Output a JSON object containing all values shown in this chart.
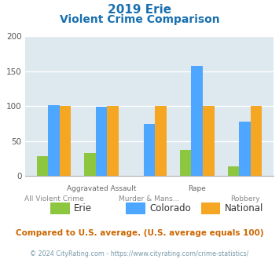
{
  "title_line1": "2019 Erie",
  "title_line2": "Violent Crime Comparison",
  "categories": [
    "All Violent Crime",
    "Aggravated Assault",
    "Murder & Mans...",
    "Rape",
    "Robbery"
  ],
  "x_labels_top": [
    "",
    "Aggravated Assault",
    "",
    "Rape",
    ""
  ],
  "x_labels_bottom": [
    "All Violent Crime",
    "",
    "Murder & Mans...",
    "",
    "Robbery"
  ],
  "series": {
    "Erie": [
      28,
      33,
      0,
      37,
      14
    ],
    "Colorado": [
      101,
      99,
      75,
      158,
      78
    ],
    "National": [
      100,
      100,
      100,
      100,
      100
    ]
  },
  "colors": {
    "Erie": "#8dc63f",
    "Colorado": "#4da6ff",
    "National": "#f5a623"
  },
  "ylim": [
    0,
    200
  ],
  "yticks": [
    0,
    50,
    100,
    150,
    200
  ],
  "background_color": "#dde8ef",
  "title_color": "#1a6faf",
  "subtitle_note": "Compared to U.S. average. (U.S. average equals 100)",
  "subtitle_note_color": "#cc6600",
  "footer": "© 2024 CityRating.com - https://www.cityrating.com/crime-statistics/",
  "footer_color": "#7799aa",
  "legend_labels": [
    "Erie",
    "Colorado",
    "National"
  ]
}
